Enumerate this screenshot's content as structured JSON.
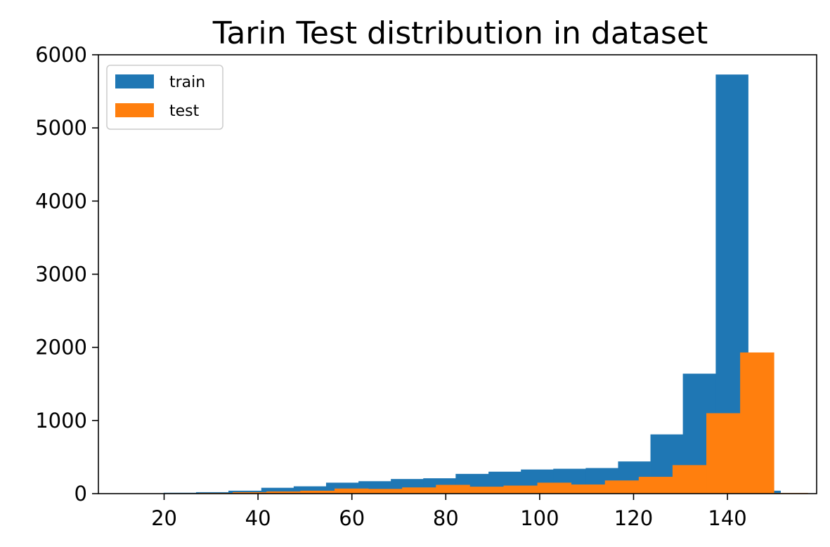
{
  "chart_data": {
    "type": "bar",
    "subtype": "histogram-overlay",
    "title": "Tarin Test distribution in dataset",
    "xlabel": "",
    "ylabel": "",
    "xlim": [
      6,
      159
    ],
    "ylim": [
      0,
      6000
    ],
    "xticks": [
      20,
      40,
      60,
      80,
      100,
      120,
      140
    ],
    "yticks": [
      0,
      1000,
      2000,
      3000,
      4000,
      5000,
      6000
    ],
    "grid": false,
    "legend": {
      "placement": "top-left"
    },
    "series": [
      {
        "name": "train",
        "color": "#1f77b4",
        "bins": [
          [
            13.0,
            19.9,
            4
          ],
          [
            19.9,
            26.8,
            12
          ],
          [
            26.8,
            33.7,
            20
          ],
          [
            33.7,
            40.7,
            40
          ],
          [
            40.7,
            47.6,
            80
          ],
          [
            47.6,
            54.5,
            100
          ],
          [
            54.5,
            61.4,
            150
          ],
          [
            61.4,
            68.3,
            170
          ],
          [
            68.3,
            75.2,
            200
          ],
          [
            75.2,
            82.1,
            210
          ],
          [
            82.1,
            89.1,
            270
          ],
          [
            89.1,
            96.0,
            300
          ],
          [
            96.0,
            102.9,
            330
          ],
          [
            102.9,
            109.8,
            340
          ],
          [
            109.8,
            116.7,
            350
          ],
          [
            116.7,
            123.6,
            440
          ],
          [
            123.6,
            130.5,
            810
          ],
          [
            130.5,
            137.5,
            1640
          ],
          [
            137.5,
            144.4,
            5730
          ],
          [
            144.4,
            151.3,
            40
          ]
        ]
      },
      {
        "name": "test",
        "color": "#ff7f0e",
        "bins": [
          [
            13.0,
            20.2,
            2
          ],
          [
            20.2,
            27.4,
            6
          ],
          [
            27.4,
            34.6,
            10
          ],
          [
            34.6,
            41.8,
            20
          ],
          [
            41.8,
            49.0,
            30
          ],
          [
            49.0,
            56.3,
            40
          ],
          [
            56.3,
            63.5,
            70
          ],
          [
            63.5,
            70.7,
            65
          ],
          [
            70.7,
            77.9,
            85
          ],
          [
            77.9,
            85.1,
            120
          ],
          [
            85.1,
            92.3,
            95
          ],
          [
            92.3,
            99.5,
            110
          ],
          [
            99.5,
            106.7,
            150
          ],
          [
            106.7,
            113.9,
            125
          ],
          [
            113.9,
            121.1,
            180
          ],
          [
            121.1,
            128.3,
            230
          ],
          [
            128.3,
            135.5,
            390
          ],
          [
            135.5,
            142.7,
            1100
          ],
          [
            142.7,
            149.9,
            1930
          ],
          [
            149.9,
            157.1,
            10
          ]
        ]
      }
    ]
  }
}
